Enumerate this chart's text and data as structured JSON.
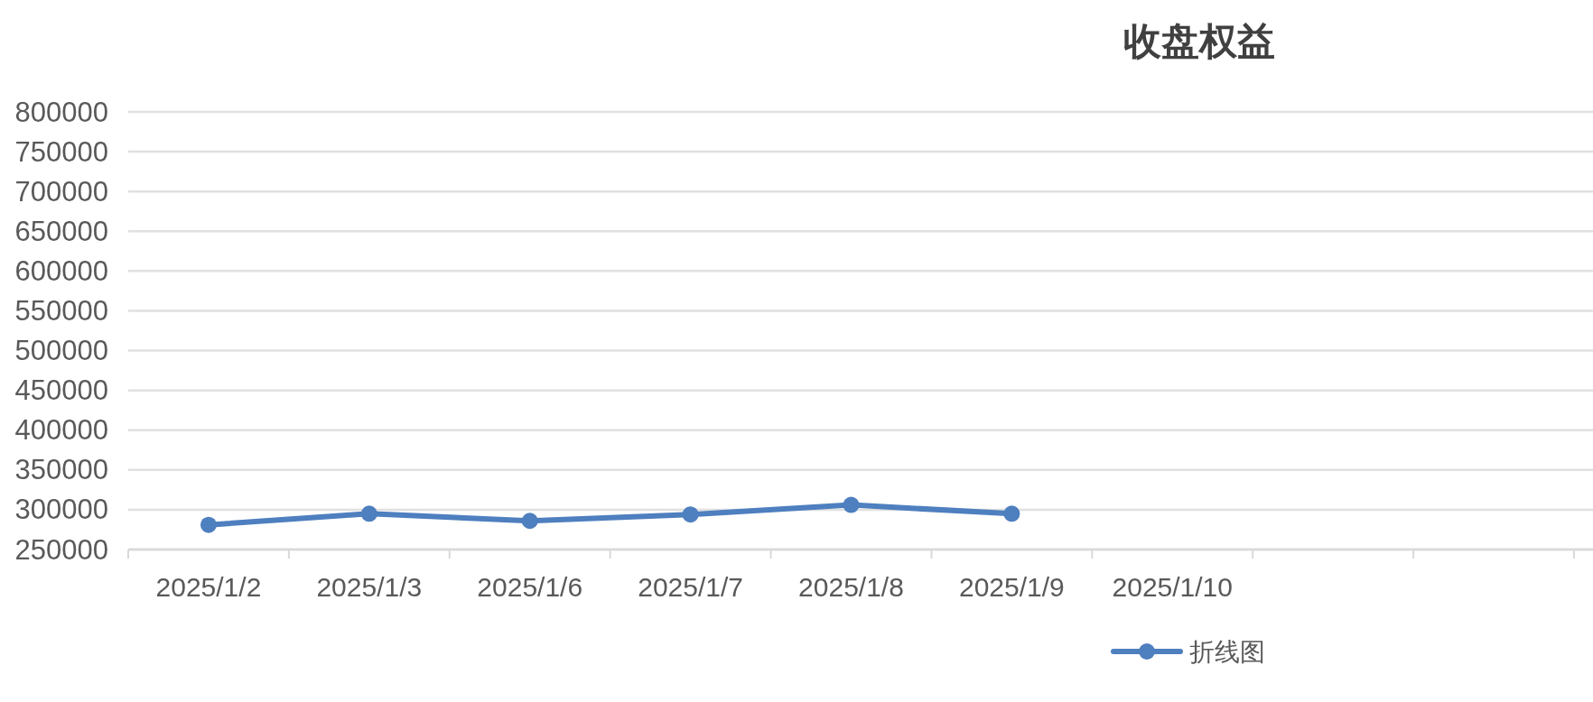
{
  "chart_data": {
    "type": "line",
    "title": "收盘权益",
    "categories": [
      "2025/1/2",
      "2025/1/3",
      "2025/1/6",
      "2025/1/7",
      "2025/1/8",
      "2025/1/9",
      "2025/1/10",
      null,
      null
    ],
    "series": [
      {
        "name": "折线图",
        "color": "#4e7fbf",
        "values": [
          281000,
          295000,
          286000,
          294000,
          306000,
          295000,
          null,
          null,
          null
        ]
      }
    ],
    "ylim": [
      250000,
      800000
    ],
    "yticks": [
      250000,
      300000,
      350000,
      400000,
      450000,
      500000,
      550000,
      600000,
      650000,
      700000,
      750000,
      800000
    ],
    "grid": "y",
    "legend": "bottom",
    "marker": "circle",
    "line_style": "solid"
  }
}
